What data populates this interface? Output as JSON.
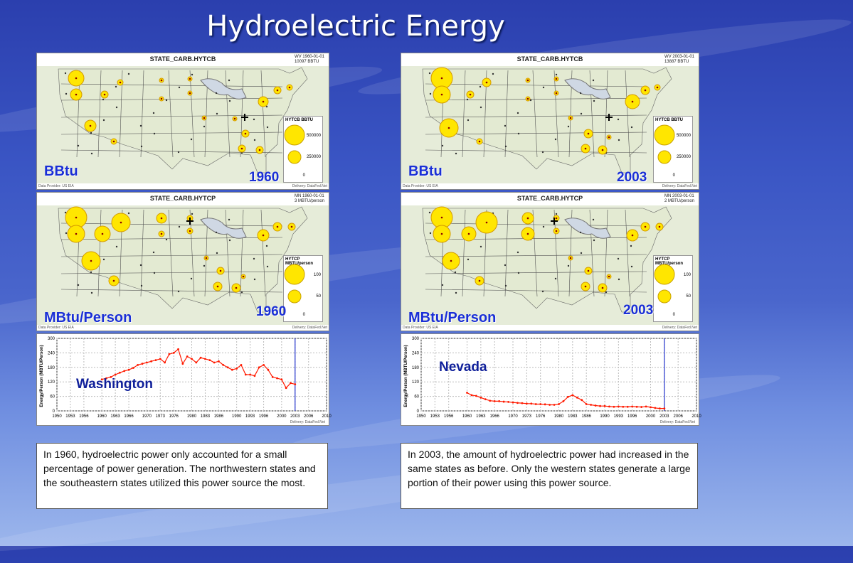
{
  "slide_title": "Hydroelectric Energy",
  "maps": [
    {
      "id": "m1",
      "title": "STATE_CARB.HYTCB",
      "info": [
        "WV 1960-01-01",
        "10097 BBTU"
      ],
      "legend_title": "HYTCB BBTU",
      "legend_values": [
        "500000",
        "250000",
        "0"
      ],
      "unit": "BBtu",
      "year": "1960",
      "provider": "Data Provider: US EIA",
      "delivery": "Delivery: DataFed.Net"
    },
    {
      "id": "m2",
      "title": "STATE_CARB.HYTCB",
      "info": [
        "WV 2003-01-01",
        "13887 BBTU"
      ],
      "legend_title": "HYTCB BBTU",
      "legend_values": [
        "500000",
        "250000",
        "0"
      ],
      "unit": "BBtu",
      "year": "2003",
      "provider": "Data Provider: US EIA",
      "delivery": "Delivery: DataFed.Net"
    },
    {
      "id": "m3",
      "title": "STATE_CARB.HYTCP",
      "info": [
        "MN 1960-01-01",
        "3 MBTU/person"
      ],
      "legend_title": "HYTCP MBTU/person",
      "legend_values": [
        "100",
        "50",
        "0"
      ],
      "unit": "MBtu/Person",
      "year": "1960",
      "provider": "Data Provider: US EIA",
      "delivery": "Delivery: DataFed.Net"
    },
    {
      "id": "m4",
      "title": "STATE_CARB.HYTCP",
      "info": [
        "MN 2003-01-01",
        "2 MBTU/person"
      ],
      "legend_title": "HYTCP MBTU/person",
      "legend_values": [
        "100",
        "50",
        "0"
      ],
      "unit": "MBtu/Person",
      "year": "2003",
      "provider": "Data Provider: US EIA",
      "delivery": "Delivery: DataFed.Net"
    }
  ],
  "chart_data": [
    {
      "type": "line",
      "title": "",
      "state_label": "Washington",
      "ylabel": "Energy/Person (MBTU/Person)",
      "xlabel": "",
      "x_ticks": [
        "1950",
        "1953",
        "1956",
        "1960",
        "1963",
        "1966",
        "1970",
        "1973",
        "1976",
        "1980",
        "1983",
        "1986",
        "1990",
        "1993",
        "1996",
        "2000",
        "2003",
        "2006",
        "2010"
      ],
      "y_ticks": [
        "0",
        "60",
        "120",
        "180",
        "240",
        "300"
      ],
      "ylim": [
        0,
        300
      ],
      "xlim": [
        1950,
        2010
      ],
      "marker_year": 2003,
      "x": [
        1960,
        1961,
        1962,
        1963,
        1964,
        1965,
        1966,
        1967,
        1968,
        1969,
        1970,
        1971,
        1972,
        1973,
        1974,
        1975,
        1976,
        1977,
        1978,
        1979,
        1980,
        1981,
        1982,
        1983,
        1984,
        1985,
        1986,
        1987,
        1988,
        1989,
        1990,
        1991,
        1992,
        1993,
        1994,
        1995,
        1996,
        1997,
        1998,
        1999,
        2000,
        2001,
        2002,
        2003
      ],
      "values": [
        130,
        135,
        140,
        150,
        158,
        165,
        170,
        178,
        190,
        195,
        200,
        205,
        210,
        215,
        200,
        235,
        240,
        255,
        195,
        225,
        215,
        200,
        220,
        215,
        210,
        200,
        205,
        190,
        180,
        170,
        175,
        190,
        150,
        150,
        145,
        180,
        190,
        170,
        140,
        135,
        130,
        95,
        115,
        110
      ],
      "delivery": "Delivery: DataFed.Net"
    },
    {
      "type": "line",
      "title": "",
      "state_label": "Nevada",
      "ylabel": "Energy/Person (MBTU/Person)",
      "xlabel": "",
      "x_ticks": [
        "1950",
        "1953",
        "1956",
        "1960",
        "1963",
        "1966",
        "1970",
        "1973",
        "1976",
        "1980",
        "1983",
        "1986",
        "1990",
        "1993",
        "1996",
        "2000",
        "2003",
        "2006",
        "2010"
      ],
      "y_ticks": [
        "0",
        "60",
        "120",
        "180",
        "240",
        "300"
      ],
      "ylim": [
        0,
        300
      ],
      "xlim": [
        1950,
        2010
      ],
      "marker_year": 2003,
      "x": [
        1960,
        1961,
        1962,
        1963,
        1964,
        1965,
        1966,
        1967,
        1968,
        1969,
        1970,
        1971,
        1972,
        1973,
        1974,
        1975,
        1976,
        1977,
        1978,
        1979,
        1980,
        1981,
        1982,
        1983,
        1984,
        1985,
        1986,
        1987,
        1988,
        1989,
        1990,
        1991,
        1992,
        1993,
        1994,
        1995,
        1996,
        1997,
        1998,
        1999,
        2000,
        2001,
        2002,
        2003
      ],
      "values": [
        75,
        65,
        62,
        55,
        48,
        42,
        40,
        40,
        38,
        37,
        35,
        33,
        32,
        30,
        30,
        28,
        28,
        27,
        25,
        25,
        28,
        40,
        58,
        65,
        55,
        45,
        28,
        25,
        22,
        20,
        20,
        18,
        17,
        18,
        17,
        17,
        18,
        17,
        16,
        18,
        15,
        12,
        10,
        10
      ],
      "delivery": "Delivery: DataFed.Net"
    }
  ],
  "captions": [
    "In 1960, hydroelectric power only accounted for a small percentage of power generation. The northwestern states and the southeastern states utilized this power source the most.",
    "In 2003, the amount of hydroelectric power had increased in the same states as before. Only the western states generate a large portion of their power using this power source."
  ]
}
